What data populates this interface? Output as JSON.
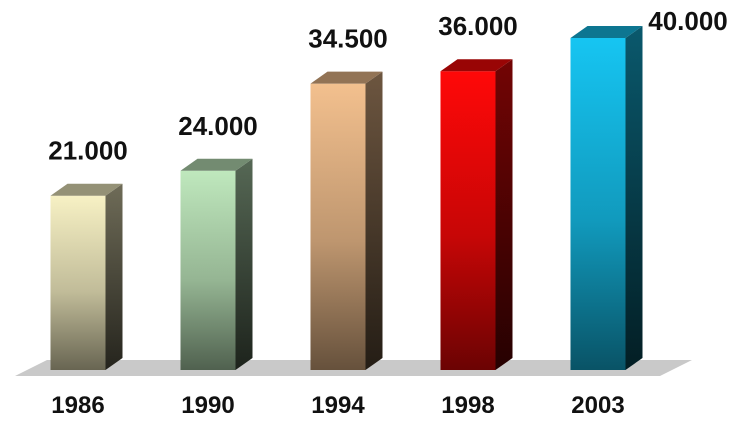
{
  "chart_data": {
    "type": "bar",
    "categories": [
      "1986",
      "1990",
      "1994",
      "1998",
      "2003"
    ],
    "values": [
      21000,
      24000,
      34500,
      36000,
      40000
    ],
    "value_labels": [
      "21.000",
      "24.000",
      "34.500",
      "36.000",
      "40.000"
    ],
    "colors": [
      "#f7f1c4",
      "#bfe8bd",
      "#f3c08e",
      "#ff0808",
      "#16c5f2"
    ],
    "style": "3d",
    "grid": false,
    "legend": "none"
  }
}
